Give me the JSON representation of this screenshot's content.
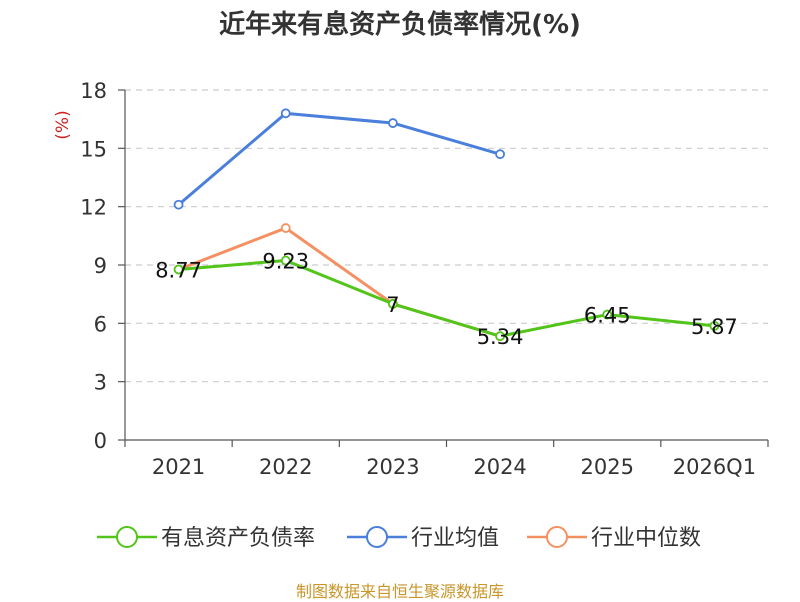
{
  "chart_data": {
    "type": "line",
    "title": "近年来有息资产负债率情况(%)",
    "unit_label": "(%)",
    "categories": [
      "2021",
      "2022",
      "2023",
      "2024",
      "2025",
      "2026Q1"
    ],
    "ylim": [
      0,
      18
    ],
    "yticks": [
      0,
      3,
      6,
      9,
      12,
      15,
      18
    ],
    "grid": true,
    "legend_position": "bottom",
    "series": [
      {
        "name": "有息资产负债率",
        "values": [
          8.77,
          9.23,
          7,
          5.34,
          6.45,
          5.87
        ],
        "labels": [
          "8.77",
          "9.23",
          "7",
          "5.34",
          "6.45",
          "5.87"
        ],
        "color": "#52c41a"
      },
      {
        "name": "行业均值",
        "values": [
          12.1,
          16.8,
          16.3,
          14.7,
          null,
          null
        ],
        "color": "#4a7fdb"
      },
      {
        "name": "行业中位数",
        "values": [
          8.77,
          10.9,
          7.0,
          5.34,
          null,
          null
        ],
        "color": "#f59062"
      }
    ],
    "colors": {
      "unit_label": "#cc2222",
      "source": "#c8962a",
      "axis": "#555555",
      "grid": "#cccccc"
    }
  },
  "source": "制图数据来自恒生聚源数据库"
}
